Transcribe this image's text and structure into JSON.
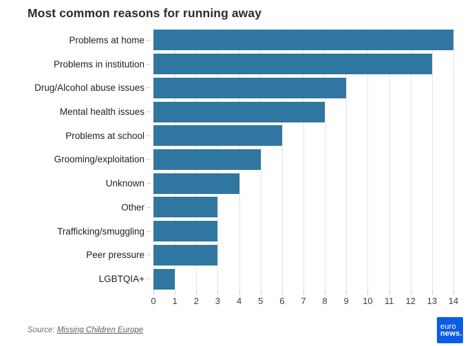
{
  "title": "Most common reasons for running away",
  "source": {
    "prefix": "Source:",
    "link_label": "Missing Children Europe"
  },
  "logo": {
    "line1": "euro",
    "line2": "news."
  },
  "colors": {
    "bar": "#2f77a0",
    "gridline": "#e4e4e4",
    "logo_blue": "#0b5ce6",
    "title_text": "#2b2b2b",
    "axis_text": "#3f3f3f"
  },
  "chart_data": {
    "type": "bar",
    "orientation": "horizontal",
    "title": "Most common reasons for running away",
    "categories": [
      "Problems at home",
      "Problems in institution",
      "Drug/Alcohol abuse issues",
      "Mental health issues",
      "Problems at school",
      "Grooming/exploitation",
      "Unknown",
      "Other",
      "Trafficking/smuggling",
      "Peer pressure",
      "LGBTQIA+"
    ],
    "values": [
      14,
      13,
      9,
      8,
      6,
      5,
      4,
      3,
      3,
      3,
      1
    ],
    "xlabel": "",
    "ylabel": "",
    "xlim": [
      0,
      14
    ],
    "x_ticks": [
      0,
      1,
      2,
      3,
      4,
      5,
      6,
      7,
      8,
      9,
      10,
      11,
      12,
      13,
      14
    ],
    "grid": true,
    "legend": false
  }
}
